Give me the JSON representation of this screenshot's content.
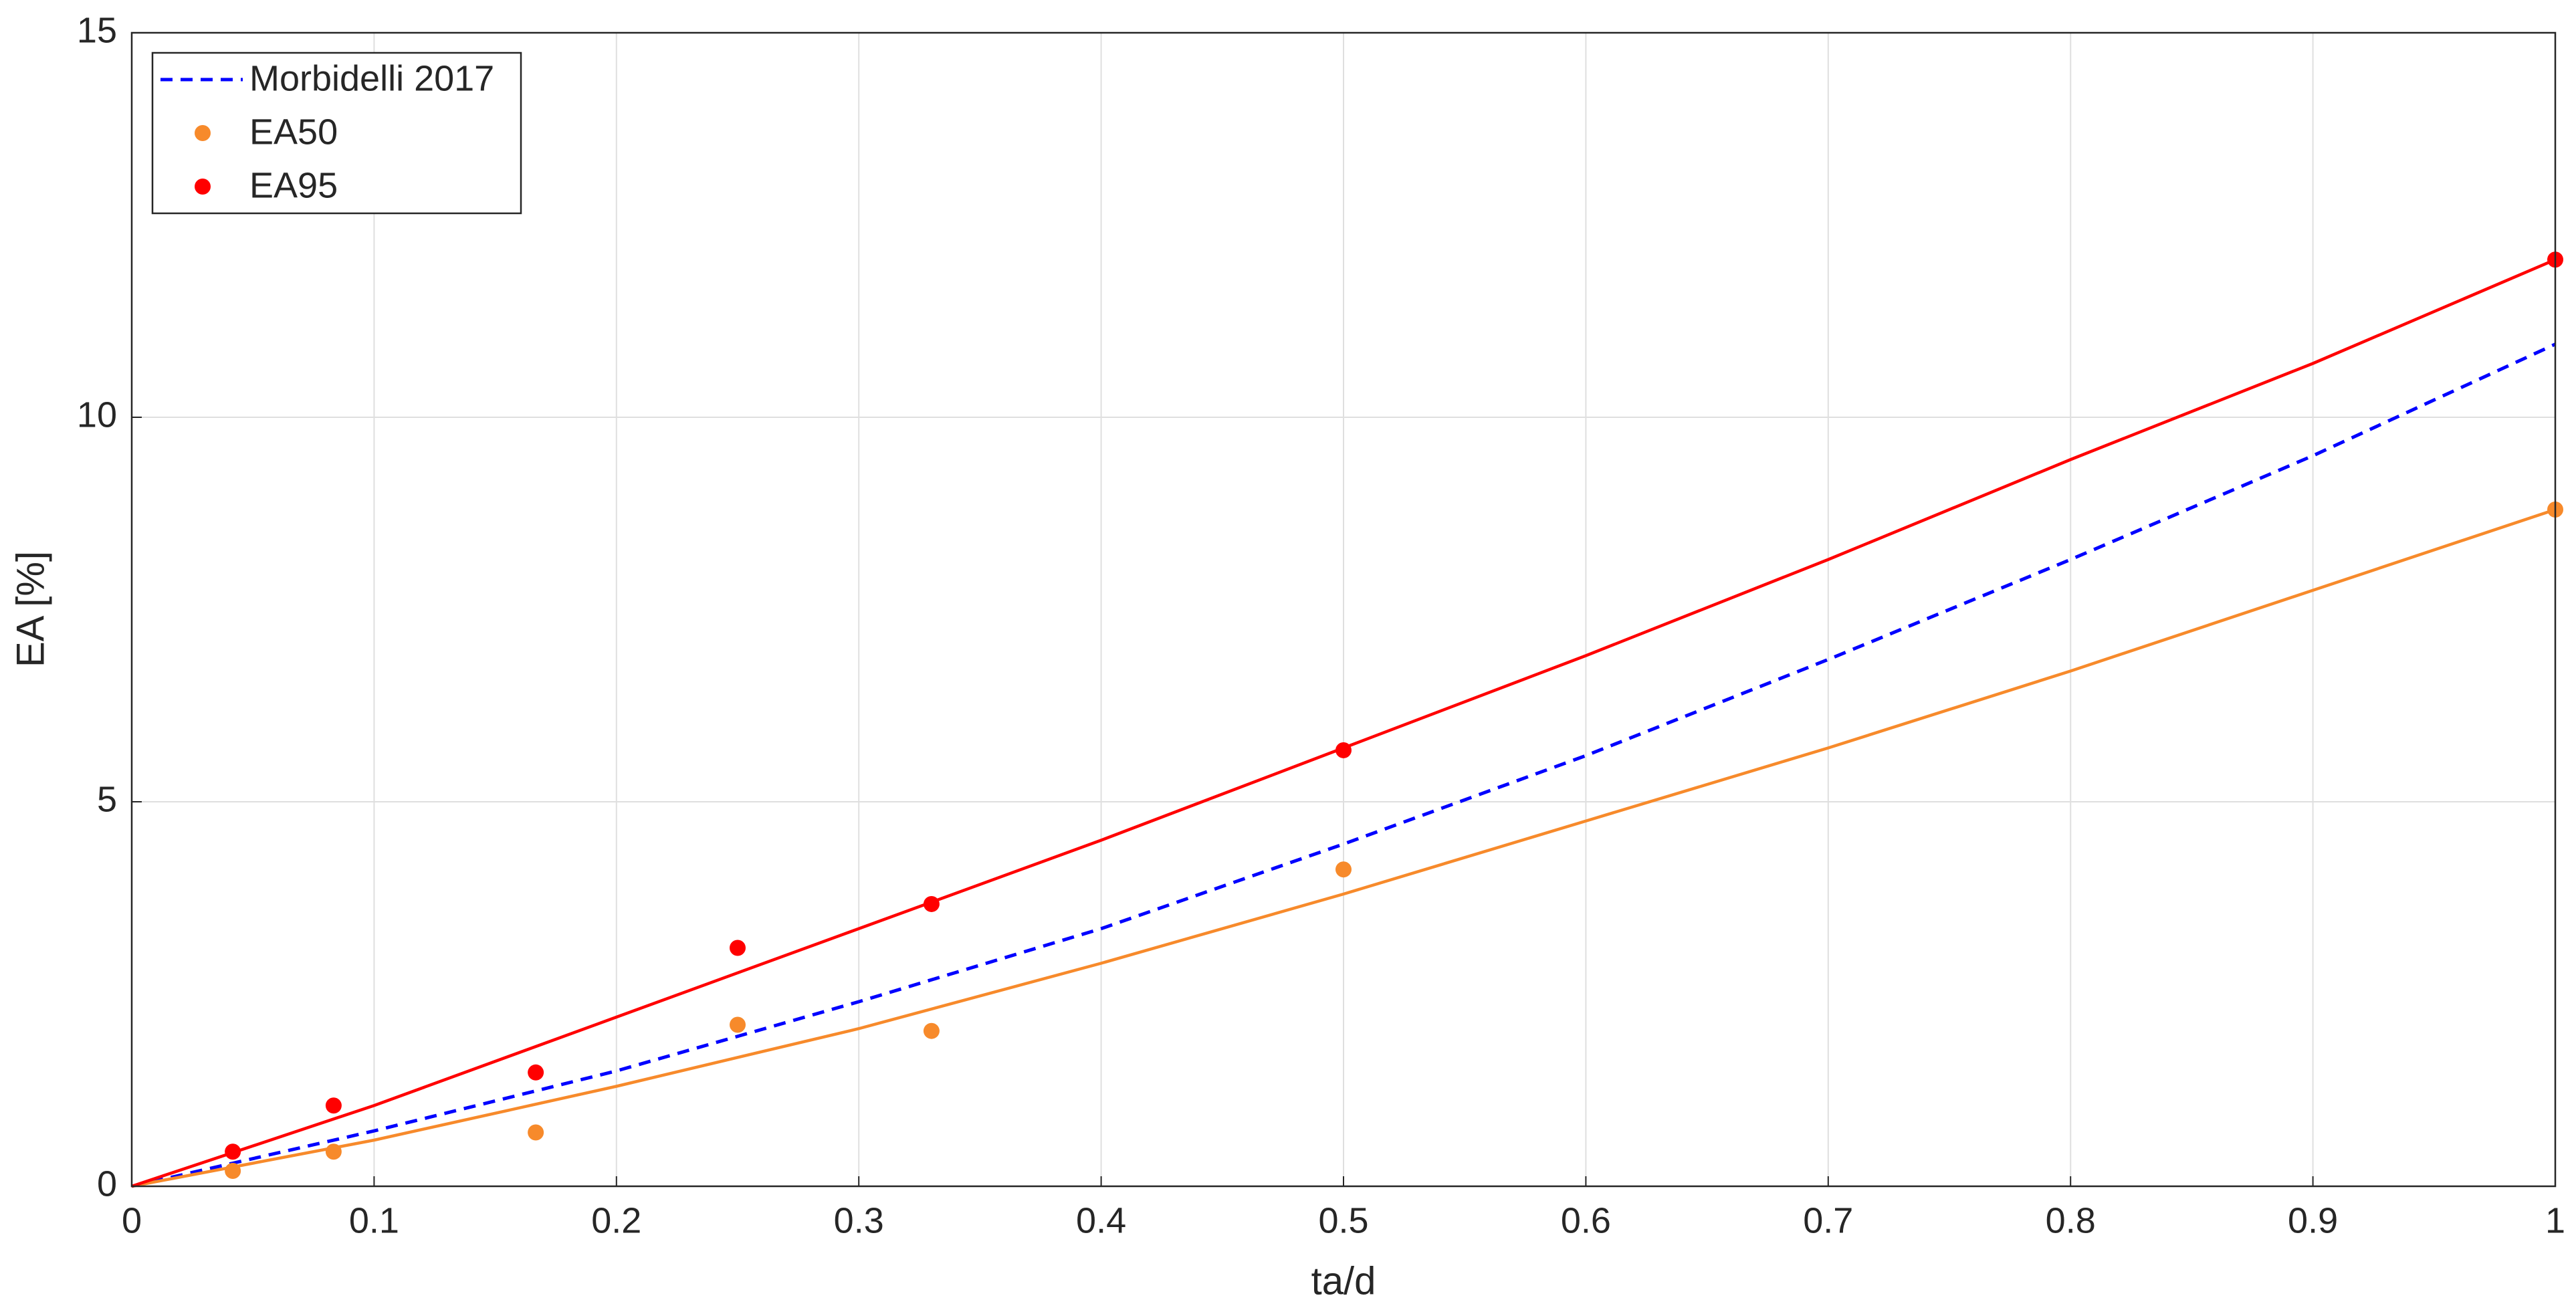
{
  "chart_data": {
    "type": "line",
    "xlabel": "ta/d",
    "ylabel": "EA [%]",
    "xlim": [
      0,
      1
    ],
    "ylim": [
      0,
      15
    ],
    "xticks": [
      0,
      0.1,
      0.2,
      0.3,
      0.4,
      0.5,
      0.6,
      0.7,
      0.8,
      0.9,
      1
    ],
    "yticks": [
      0,
      5,
      10,
      15
    ],
    "grid": true,
    "legend": "upper left",
    "series": [
      {
        "name": "Morbidelli 2017",
        "color": "#0000ff",
        "style": "dashed",
        "x": [
          0,
          0.0417,
          0.1,
          0.2,
          0.3,
          0.4,
          0.5,
          0.6,
          0.7,
          0.8,
          0.9,
          1
        ],
        "values": [
          0,
          0.3,
          0.72,
          1.5,
          2.4,
          3.35,
          4.45,
          5.6,
          6.85,
          8.15,
          9.5,
          10.95
        ]
      },
      {
        "name": "EA50",
        "color": "#f78a2b",
        "style": "markers",
        "x": [
          0.0417,
          0.0833,
          0.1667,
          0.25,
          0.33,
          0.5,
          1
        ],
        "values": [
          0.2,
          0.45,
          0.7,
          2.1,
          2.02,
          4.12,
          8.8
        ]
      },
      {
        "name": "EA95",
        "color": "#ff0000",
        "style": "markers",
        "x": [
          0.0417,
          0.0833,
          0.1667,
          0.25,
          0.33,
          0.5,
          1
        ],
        "values": [
          0.45,
          1.05,
          1.48,
          3.1,
          3.67,
          5.67,
          12.05
        ]
      },
      {
        "color": "#f78a2b",
        "style": "solid",
        "x": [
          0,
          0.1,
          0.2,
          0.3,
          0.4,
          0.5,
          0.6,
          0.7,
          0.8,
          0.9,
          1
        ],
        "values": [
          0,
          0.6,
          1.3,
          2.05,
          2.9,
          3.8,
          4.75,
          5.7,
          6.7,
          7.75,
          8.8
        ]
      },
      {
        "color": "#ff0000",
        "style": "solid",
        "x": [
          0,
          0.1,
          0.2,
          0.3,
          0.4,
          0.5,
          0.6,
          0.7,
          0.8,
          0.9,
          1
        ],
        "values": [
          0,
          1.05,
          2.2,
          3.35,
          4.5,
          5.7,
          6.9,
          8.15,
          9.45,
          10.7,
          12.05
        ]
      }
    ]
  }
}
